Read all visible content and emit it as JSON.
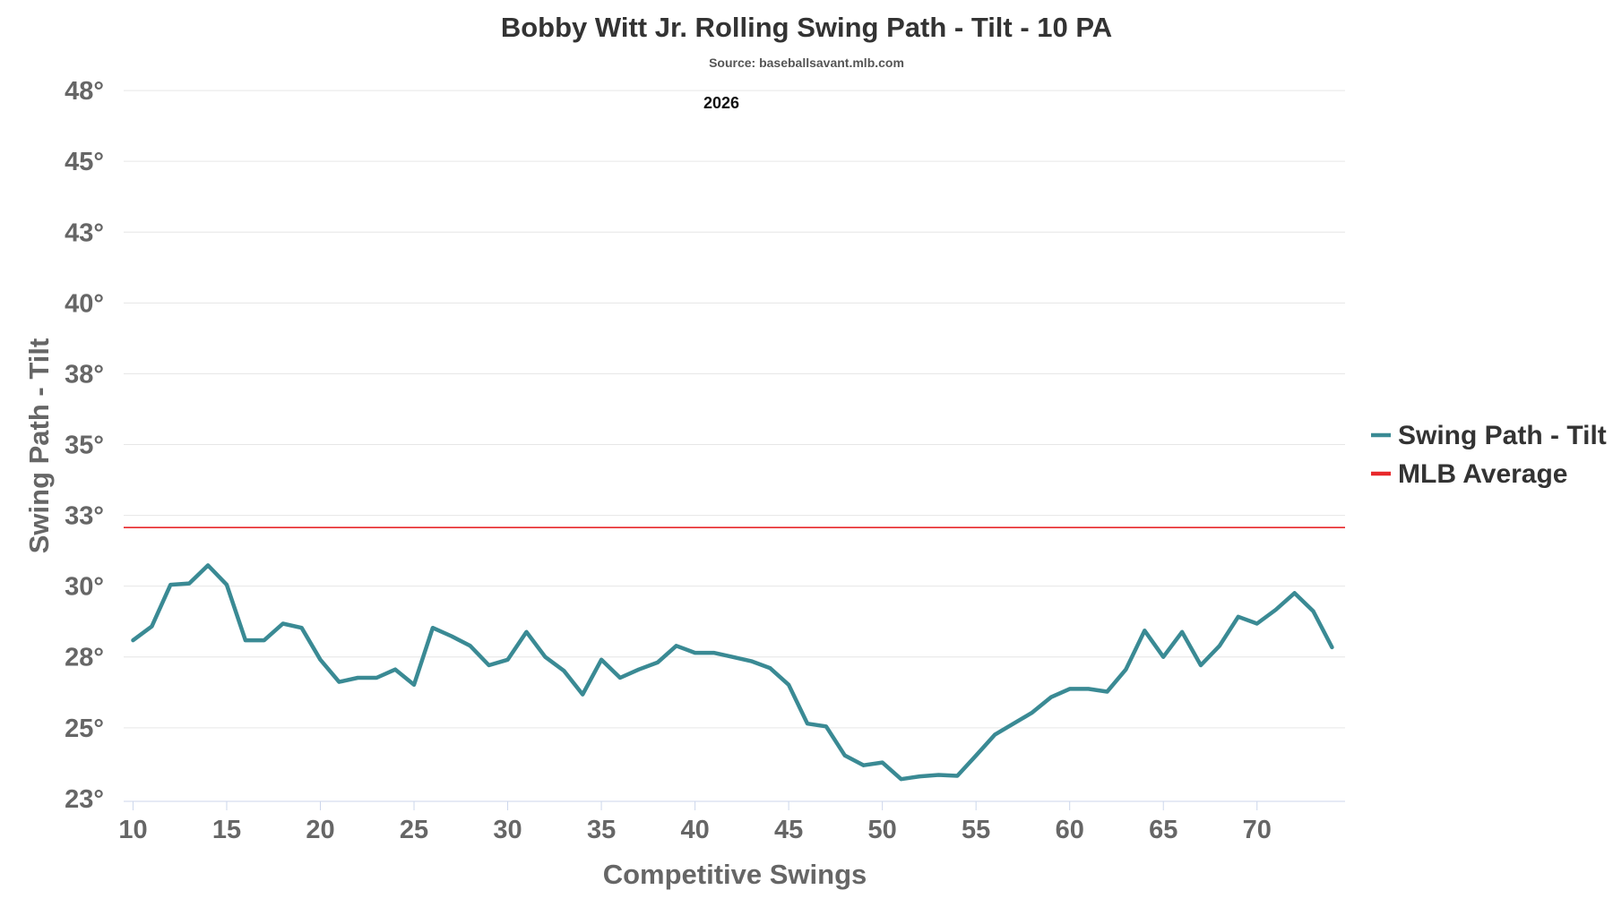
{
  "chart_data": {
    "type": "line",
    "title": "Bobby Witt Jr. Rolling Swing Path - Tilt - 10 PA",
    "subtitle": "Source: baseballsavant.mlb.com",
    "annotation": "2026",
    "xlabel": "Competitive Swings",
    "ylabel": "Swing Path - Tilt",
    "xlim": [
      9.5,
      74.7
    ],
    "ylim": [
      22.5,
      48.2
    ],
    "x_ticks": [
      10,
      15,
      20,
      25,
      30,
      35,
      40,
      45,
      50,
      55,
      60,
      65,
      70
    ],
    "y_ticks": [
      {
        "value": 22.6,
        "label": "23°"
      },
      {
        "value": 25.15,
        "label": "25°"
      },
      {
        "value": 27.7,
        "label": "28°"
      },
      {
        "value": 30.25,
        "label": "30°"
      },
      {
        "value": 32.8,
        "label": "33°"
      },
      {
        "value": 35.35,
        "label": "35°"
      },
      {
        "value": 37.9,
        "label": "38°"
      },
      {
        "value": 40.45,
        "label": "40°"
      },
      {
        "value": 43.0,
        "label": "43°"
      },
      {
        "value": 45.55,
        "label": "45°"
      },
      {
        "value": 48.1,
        "label": "48°"
      }
    ],
    "grid": true,
    "legend_position": "right",
    "series": [
      {
        "name": "Swing Path - Tilt",
        "color": "#3a8a94",
        "x": [
          10,
          11,
          12,
          13,
          14,
          15,
          16,
          17,
          18,
          19,
          20,
          21,
          22,
          23,
          24,
          25,
          26,
          27,
          28,
          29,
          30,
          31,
          32,
          33,
          34,
          35,
          36,
          37,
          38,
          39,
          40,
          41,
          42,
          43,
          44,
          45,
          46,
          47,
          48,
          49,
          50,
          51,
          52,
          53,
          54,
          55,
          56,
          57,
          58,
          59,
          60,
          61,
          62,
          63,
          64,
          65,
          66,
          67,
          68,
          69,
          70,
          71,
          72,
          73,
          74
        ],
        "values": [
          28.3,
          28.8,
          30.3,
          30.35,
          31.0,
          30.3,
          28.3,
          28.3,
          28.9,
          28.75,
          27.6,
          26.8,
          26.95,
          26.95,
          27.25,
          26.7,
          28.75,
          28.45,
          28.1,
          27.4,
          27.6,
          28.6,
          27.7,
          27.2,
          26.35,
          27.6,
          26.95,
          27.25,
          27.5,
          28.1,
          27.85,
          27.85,
          27.7,
          27.55,
          27.3,
          26.7,
          25.3,
          25.2,
          24.15,
          23.8,
          23.9,
          23.3,
          23.4,
          23.45,
          23.42,
          24.15,
          24.9,
          25.3,
          25.7,
          26.25,
          26.55,
          26.55,
          26.45,
          27.25,
          28.65,
          27.7,
          28.6,
          27.4,
          28.1,
          29.15,
          28.9,
          29.4,
          30.0,
          29.35,
          28.05
        ]
      },
      {
        "name": "MLB Average",
        "color": "#e8282b",
        "constant": 32.36
      }
    ]
  }
}
